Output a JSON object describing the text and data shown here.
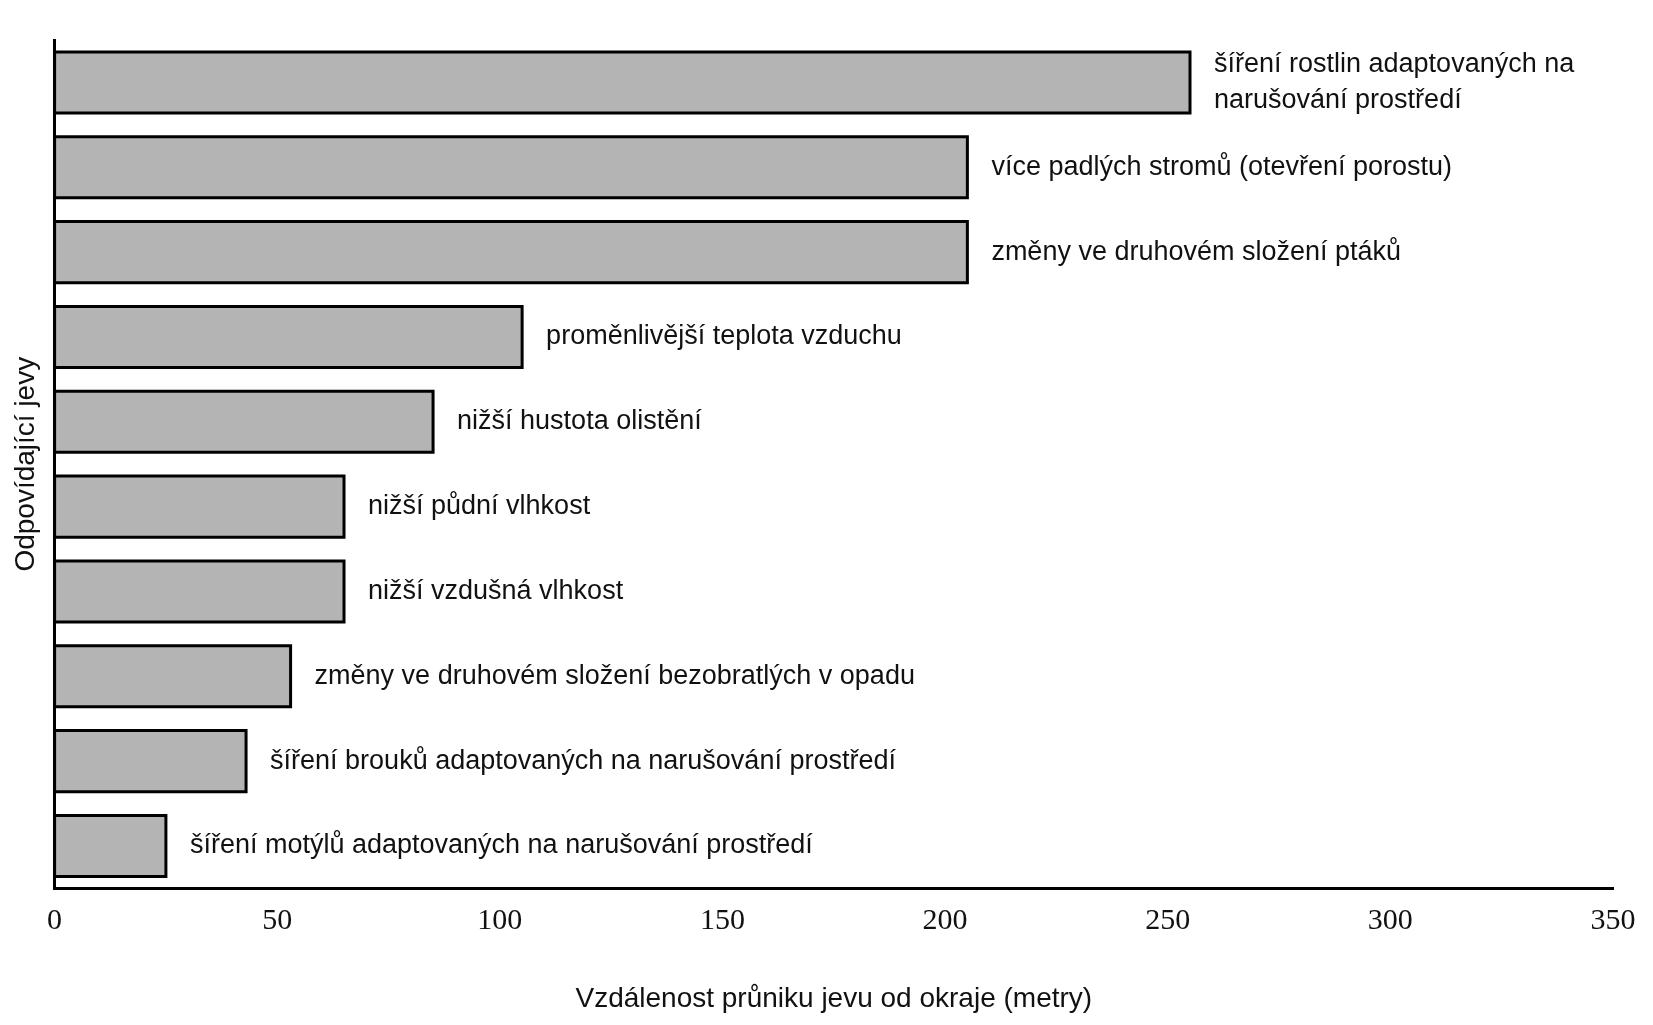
{
  "chart_data": {
    "type": "bar",
    "orientation": "horizontal",
    "xlabel": "Vzdálenost průniku jevu od okraje (metry)",
    "ylabel": "Odpovídající jevy",
    "categories": [
      "šíření rostlin adaptovaných na narušování prostředí",
      "více padlých stromů (otevření porostu)",
      "změny ve druhovém složení ptáků",
      "proměnlivější teplota vzduchu",
      "nižší hustota olistění",
      "nižší půdní vlhkost",
      "nižší vzdušná vlhkost",
      "změny ve druhovém složení bezobratlých v opadu",
      "šíření brouků adaptovaných na narušování prostředí",
      "šíření motýlů adaptovaných na narušování prostředí"
    ],
    "values": [
      255,
      205,
      205,
      105,
      85,
      65,
      65,
      53,
      43,
      25
    ],
    "color": "#b4b4b4",
    "xlim": [
      0,
      350
    ],
    "xticks": [
      0,
      50,
      100,
      150,
      200,
      250,
      300,
      350
    ],
    "grid": false,
    "legend": false
  }
}
